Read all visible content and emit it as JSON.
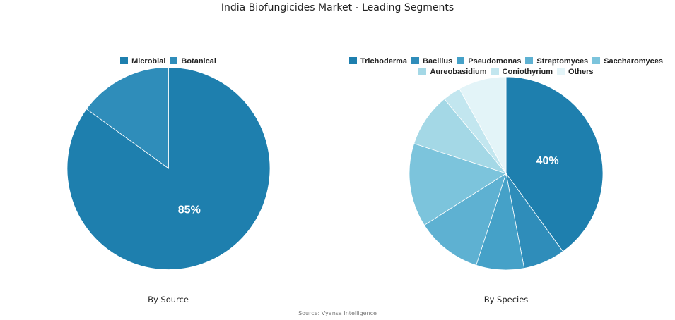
{
  "title": "India Biofungicides Market - Leading Segments",
  "source_note": "Source: Vyansa Intelligence",
  "chart_data": [
    {
      "type": "pie",
      "caption": "By Source",
      "categories": [
        "Microbial",
        "Botanical"
      ],
      "values": [
        85,
        15
      ],
      "colors": [
        "#1e7fae",
        "#2f8dba"
      ],
      "data_labels": [
        "85%",
        ""
      ],
      "legend": "top",
      "start_angle_deg": 0
    },
    {
      "type": "pie",
      "caption": "By Species",
      "categories": [
        "Trichoderma",
        "Bacillus",
        "Pseudomonas",
        "Streptomyces",
        "Saccharomyces",
        "Aureobasidium",
        "Coniothyrium",
        "Others"
      ],
      "values": [
        40,
        7,
        8,
        11,
        14,
        9,
        3,
        8
      ],
      "colors": [
        "#1e7fae",
        "#2f8dba",
        "#45a1c8",
        "#5eb1d2",
        "#7cc4dc",
        "#a4d8e6",
        "#c2e6ef",
        "#e3f4f8"
      ],
      "data_labels": [
        "40%",
        "",
        "",
        "",
        "",
        "",
        "",
        ""
      ],
      "legend": "top",
      "start_angle_deg": 0
    }
  ]
}
